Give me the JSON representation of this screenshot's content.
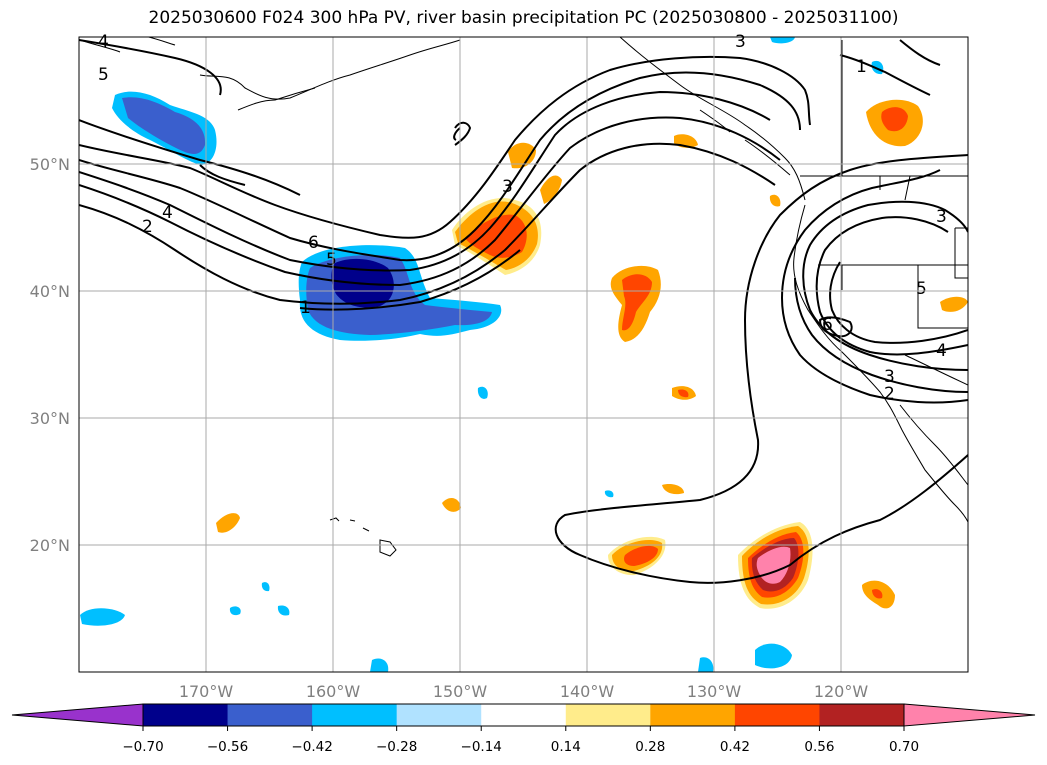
{
  "title": "2025030600 F024 300 hPa PV, river basin precipitation PC (2025030800 - 2025031100)",
  "map": {
    "lon_range": [
      -180,
      -110
    ],
    "lat_range": [
      10,
      60
    ],
    "lat_ticks": [
      {
        "value": 50,
        "label": "50°N"
      },
      {
        "value": 40,
        "label": "40°N"
      },
      {
        "value": 30,
        "label": "30°N"
      },
      {
        "value": 20,
        "label": "20°N"
      }
    ],
    "lon_ticks": [
      {
        "value": -170,
        "label": "170°W"
      },
      {
        "value": -160,
        "label": "160°W"
      },
      {
        "value": -150,
        "label": "150°W"
      },
      {
        "value": -140,
        "label": "140°W"
      },
      {
        "value": -130,
        "label": "130°W"
      },
      {
        "value": -120,
        "label": "120°W"
      }
    ],
    "grid": true,
    "contour_labels": [
      "4",
      "5",
      "2",
      "4",
      "6",
      "5",
      "1",
      "3",
      "3",
      "1",
      "3",
      "5",
      "6",
      "4",
      "3",
      "2"
    ]
  },
  "colorbar": {
    "colors": [
      "#9932cc",
      "#00008b",
      "#3a5fcd",
      "#00bfff",
      "#b0e2ff",
      "#ffffff",
      "#ffec8b",
      "#ffa500",
      "#ff4500",
      "#b22222",
      "#ff82ab",
      "#ff82ab"
    ],
    "ticks": [
      "−0.70",
      "−0.56",
      "−0.42",
      "−0.28",
      "−0.14",
      "0.14",
      "0.28",
      "0.42",
      "0.56",
      "0.70"
    ]
  }
}
